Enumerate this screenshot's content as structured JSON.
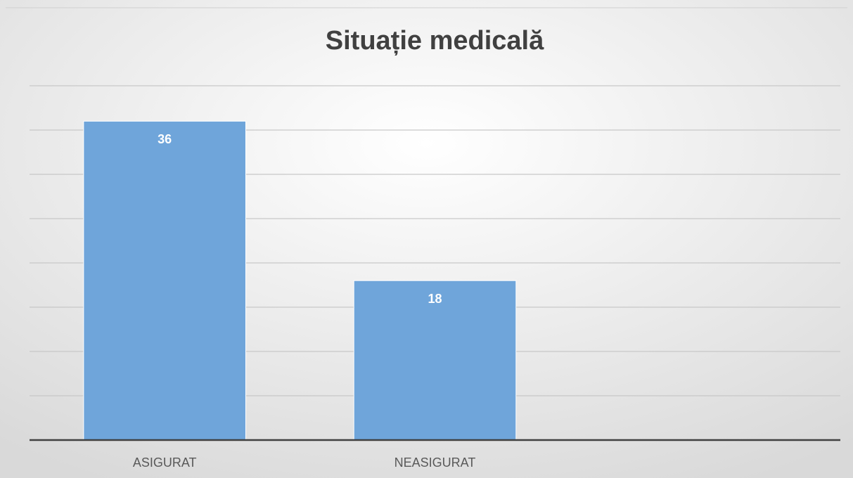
{
  "chart_data": {
    "type": "bar",
    "title": "Situație medicală",
    "categories": [
      "ASIGURAT",
      "NEASIGURAT",
      null
    ],
    "values": [
      36,
      18,
      null
    ],
    "color": "#6fa5da",
    "ylim": [
      0,
      40
    ],
    "yticks": [
      0,
      5,
      10,
      15,
      20,
      25,
      30,
      35,
      40
    ],
    "grid": true
  }
}
